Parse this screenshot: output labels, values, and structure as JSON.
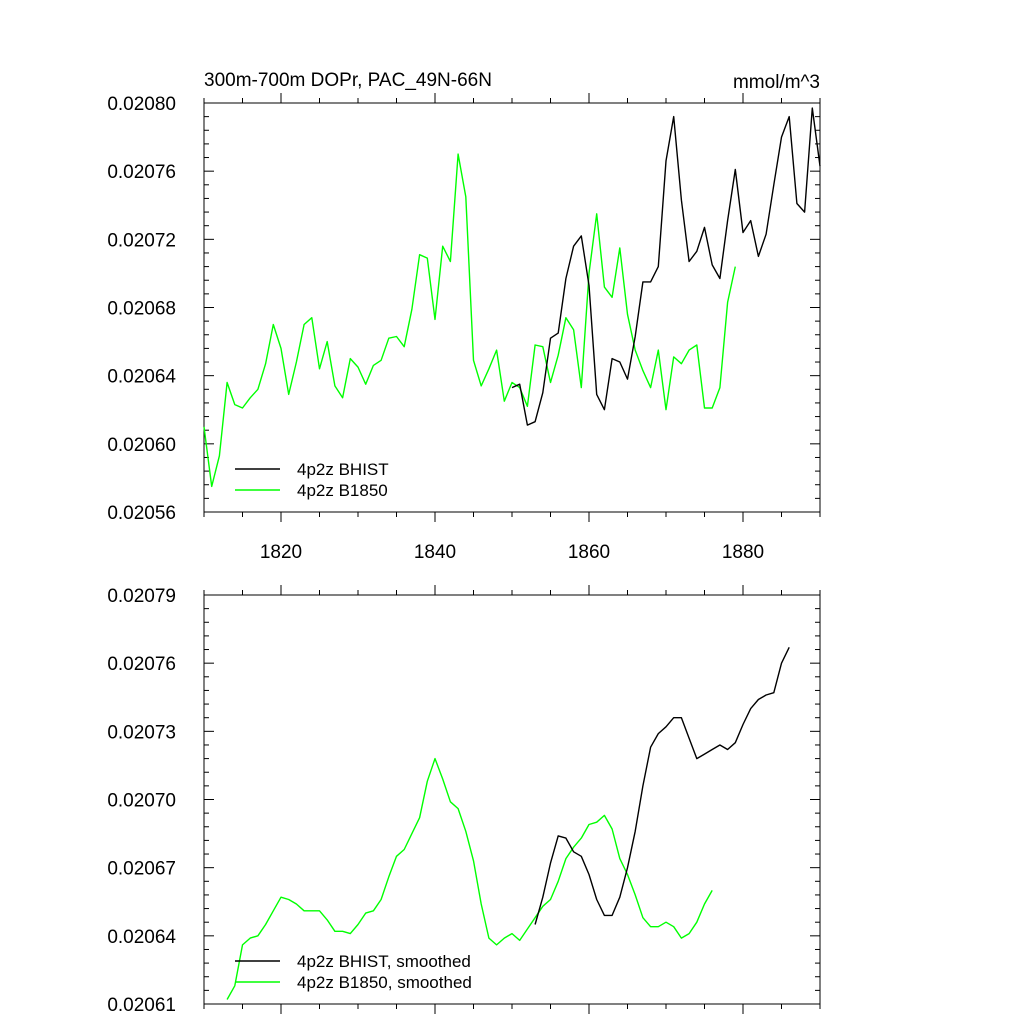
{
  "chart_data": [
    {
      "type": "line",
      "title": "300m-700m DOPr, PAC_49N-66N",
      "units": "mmol/m^3",
      "xlim": [
        1810,
        1890
      ],
      "ylim": [
        0.02056,
        0.0208
      ],
      "xticks": [
        1820,
        1840,
        1860,
        1880
      ],
      "x_tick_labels": [
        "1820",
        "1840",
        "1860",
        "1880"
      ],
      "yticks": [
        0.02056,
        0.0206,
        0.02064,
        0.02068,
        0.02072,
        0.02076,
        0.0208
      ],
      "y_tick_labels": [
        "0.02056",
        "0.02060",
        "0.02064",
        "0.02068",
        "0.02072",
        "0.02076",
        "0.02080"
      ],
      "legend": [
        "4p2z BHIST",
        "4p2z B1850"
      ],
      "series": [
        {
          "name": "4p2z BHIST",
          "color": "#000000",
          "x": [
            1850,
            1851,
            1852,
            1853,
            1854,
            1855,
            1856,
            1857,
            1858,
            1859,
            1860,
            1861,
            1862,
            1863,
            1864,
            1865,
            1866,
            1867,
            1868,
            1869,
            1870,
            1871,
            1872,
            1873,
            1874,
            1875,
            1876,
            1877,
            1878,
            1879,
            1880,
            1881,
            1882,
            1883,
            1884,
            1885,
            1886,
            1887,
            1888,
            1889,
            1890
          ],
          "values": [
            0.020633,
            0.020635,
            0.020611,
            0.020613,
            0.02063,
            0.020662,
            0.020665,
            0.020697,
            0.020716,
            0.020722,
            0.020693,
            0.020629,
            0.02062,
            0.02065,
            0.020648,
            0.020638,
            0.020663,
            0.020695,
            0.020695,
            0.020704,
            0.020766,
            0.020792,
            0.020743,
            0.020707,
            0.020713,
            0.020727,
            0.020705,
            0.020697,
            0.020731,
            0.020761,
            0.020724,
            0.020731,
            0.02071,
            0.020723,
            0.020752,
            0.02078,
            0.020792,
            0.020741,
            0.020736,
            0.020797,
            0.020763
          ]
        },
        {
          "name": "4p2z B1850",
          "color": "#00ff00",
          "x": [
            1810,
            1811,
            1812,
            1813,
            1814,
            1815,
            1816,
            1817,
            1818,
            1819,
            1820,
            1821,
            1822,
            1823,
            1824,
            1825,
            1826,
            1827,
            1828,
            1829,
            1830,
            1831,
            1832,
            1833,
            1834,
            1835,
            1836,
            1837,
            1838,
            1839,
            1840,
            1841,
            1842,
            1843,
            1844,
            1845,
            1846,
            1847,
            1848,
            1849,
            1850,
            1851,
            1852,
            1853,
            1854,
            1855,
            1856,
            1857,
            1858,
            1859,
            1860,
            1861,
            1862,
            1863,
            1864,
            1865,
            1866,
            1867,
            1868,
            1869,
            1870,
            1871,
            1872,
            1873,
            1874,
            1875,
            1876,
            1877,
            1878,
            1879
          ],
          "values": [
            0.02061,
            0.020575,
            0.020593,
            0.020636,
            0.020623,
            0.020621,
            0.020627,
            0.020632,
            0.020647,
            0.02067,
            0.020656,
            0.020629,
            0.020648,
            0.02067,
            0.020674,
            0.020644,
            0.02066,
            0.020634,
            0.020627,
            0.02065,
            0.020645,
            0.020635,
            0.020646,
            0.020649,
            0.020662,
            0.020663,
            0.020657,
            0.020679,
            0.020711,
            0.020709,
            0.020673,
            0.020716,
            0.020707,
            0.02077,
            0.020745,
            0.020649,
            0.020634,
            0.020644,
            0.020655,
            0.020625,
            0.020636,
            0.020633,
            0.020622,
            0.020658,
            0.020657,
            0.020636,
            0.020652,
            0.020674,
            0.020667,
            0.020633,
            0.0207,
            0.020735,
            0.020692,
            0.020686,
            0.020715,
            0.020676,
            0.020655,
            0.020643,
            0.020633,
            0.020655,
            0.02062,
            0.020651,
            0.020647,
            0.020655,
            0.020658,
            0.020621,
            0.020621,
            0.020633,
            0.020683,
            0.020704
          ]
        }
      ]
    },
    {
      "type": "line",
      "xlim": [
        1810,
        1890
      ],
      "ylim": [
        0.02061,
        0.02079
      ],
      "xticks": [
        1820,
        1840,
        1860,
        1880
      ],
      "yticks": [
        0.02061,
        0.02064,
        0.02067,
        0.0207,
        0.02073,
        0.02076,
        0.02079
      ],
      "y_tick_labels": [
        "0.02061",
        "0.02064",
        "0.02067",
        "0.02070",
        "0.02073",
        "0.02076",
        "0.02079"
      ],
      "legend": [
        "4p2z BHIST, smoothed",
        "4p2z B1850, smoothed"
      ],
      "series": [
        {
          "name": "4p2z BHIST, smoothed",
          "color": "#000000",
          "x": [
            1853,
            1854,
            1855,
            1856,
            1857,
            1858,
            1859,
            1860,
            1861,
            1862,
            1863,
            1864,
            1865,
            1866,
            1867,
            1868,
            1869,
            1870,
            1871,
            1872,
            1873,
            1874,
            1875,
            1876,
            1877,
            1878,
            1879,
            1880,
            1881,
            1882,
            1883,
            1884,
            1885,
            1886
          ],
          "values": [
            0.020645,
            0.020657,
            0.020672,
            0.020684,
            0.020683,
            0.020677,
            0.020675,
            0.020667,
            0.020656,
            0.020649,
            0.020649,
            0.020657,
            0.02067,
            0.020686,
            0.020706,
            0.020723,
            0.020729,
            0.020732,
            0.020736,
            0.020736,
            0.020727,
            0.020718,
            0.02072,
            0.020722,
            0.020724,
            0.020722,
            0.020725,
            0.020733,
            0.02074,
            0.020744,
            0.020746,
            0.020747,
            0.02076,
            0.020767
          ]
        },
        {
          "name": "4p2z B1850, smoothed",
          "color": "#00ff00",
          "x": [
            1813,
            1814,
            1815,
            1816,
            1817,
            1818,
            1819,
            1820,
            1821,
            1822,
            1823,
            1824,
            1825,
            1826,
            1827,
            1828,
            1829,
            1830,
            1831,
            1832,
            1833,
            1834,
            1835,
            1836,
            1837,
            1838,
            1839,
            1840,
            1841,
            1842,
            1843,
            1844,
            1845,
            1846,
            1847,
            1848,
            1849,
            1850,
            1851,
            1852,
            1853,
            1854,
            1855,
            1856,
            1857,
            1858,
            1859,
            1860,
            1861,
            1862,
            1863,
            1864,
            1865,
            1866,
            1867,
            1868,
            1869,
            1870,
            1871,
            1872,
            1873,
            1874,
            1875,
            1876
          ],
          "values": [
            0.020612,
            0.020618,
            0.020636,
            0.020639,
            0.02064,
            0.020645,
            0.020651,
            0.020657,
            0.020656,
            0.020654,
            0.020651,
            0.020651,
            0.020651,
            0.020647,
            0.020642,
            0.020642,
            0.020641,
            0.020645,
            0.02065,
            0.020651,
            0.020656,
            0.020666,
            0.020675,
            0.020678,
            0.020685,
            0.020692,
            0.020708,
            0.020718,
            0.020709,
            0.020699,
            0.020696,
            0.020686,
            0.020673,
            0.020654,
            0.020639,
            0.020636,
            0.020639,
            0.020641,
            0.020638,
            0.020643,
            0.020648,
            0.020653,
            0.020656,
            0.020664,
            0.020674,
            0.020679,
            0.020683,
            0.020689,
            0.02069,
            0.020693,
            0.020687,
            0.020674,
            0.020667,
            0.020658,
            0.020648,
            0.020644,
            0.020644,
            0.020646,
            0.020644,
            0.020639,
            0.020641,
            0.020646,
            0.020654,
            0.02066
          ]
        }
      ]
    }
  ]
}
